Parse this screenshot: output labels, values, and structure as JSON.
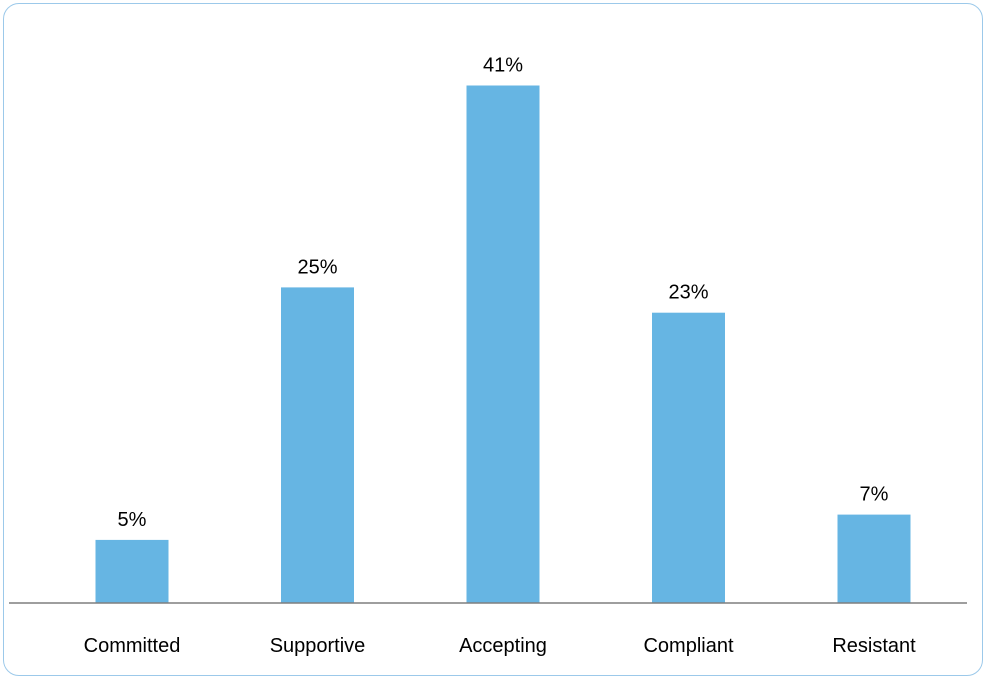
{
  "chart_data": {
    "type": "bar",
    "categories": [
      "Committed",
      "Supportive",
      "Accepting",
      "Compliant",
      "Resistant"
    ],
    "values": [
      5,
      25,
      41,
      23,
      7
    ],
    "value_labels": [
      "5%",
      "25%",
      "41%",
      "23%",
      "7%"
    ],
    "unit": "%",
    "ylim": [
      0,
      45
    ],
    "grid": false,
    "legend": "none",
    "bar_color": "#66b5e3",
    "axis_color": "#7f7f7f"
  }
}
